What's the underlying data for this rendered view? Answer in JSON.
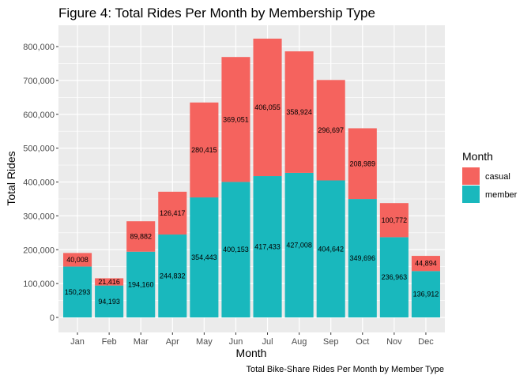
{
  "chart_data": {
    "type": "bar",
    "stacked": true,
    "title": "Figure 4: Total Rides Per Month by Membership Type",
    "xlabel": "Month",
    "ylabel": "Total Rides",
    "caption": "Total Bike-Share Rides Per Month by Member Type",
    "categories": [
      "Jan",
      "Feb",
      "Mar",
      "Apr",
      "May",
      "Jun",
      "Jul",
      "Aug",
      "Sep",
      "Oct",
      "Nov",
      "Dec"
    ],
    "ylim": [
      0,
      850000
    ],
    "yticks": [
      0,
      100000,
      200000,
      300000,
      400000,
      500000,
      600000,
      700000,
      800000
    ],
    "ytick_labels": [
      "0",
      "100,000",
      "200,000",
      "300,000",
      "400,000",
      "500,000",
      "600,000",
      "700,000",
      "800,000"
    ],
    "grid": true,
    "legend": {
      "title": "Month",
      "position": "right"
    },
    "series": [
      {
        "name": "member",
        "color": "#19B8BD",
        "values": [
          150293,
          94193,
          194160,
          244832,
          354443,
          400153,
          417433,
          427008,
          404642,
          349696,
          236963,
          136912
        ],
        "labels": [
          "150,293",
          "94,193",
          "194,160",
          "244,832",
          "354,443",
          "400,153",
          "417,433",
          "427,008",
          "404,642",
          "349,696",
          "236,963",
          "136,912"
        ]
      },
      {
        "name": "casual",
        "color": "#F5635E",
        "values": [
          40008,
          21416,
          89882,
          126417,
          280415,
          369051,
          406055,
          358924,
          296697,
          208989,
          100772,
          44894
        ],
        "labels": [
          "40,008",
          "21,416",
          "89,882",
          "126,417",
          "280,415",
          "369,051",
          "406,055",
          "358,924",
          "296,697",
          "208,989",
          "100,772",
          "44,894"
        ]
      }
    ],
    "legend_order": [
      "casual",
      "member"
    ],
    "panel_background": "#EBEBEB",
    "grid_color": "#FFFFFF"
  }
}
